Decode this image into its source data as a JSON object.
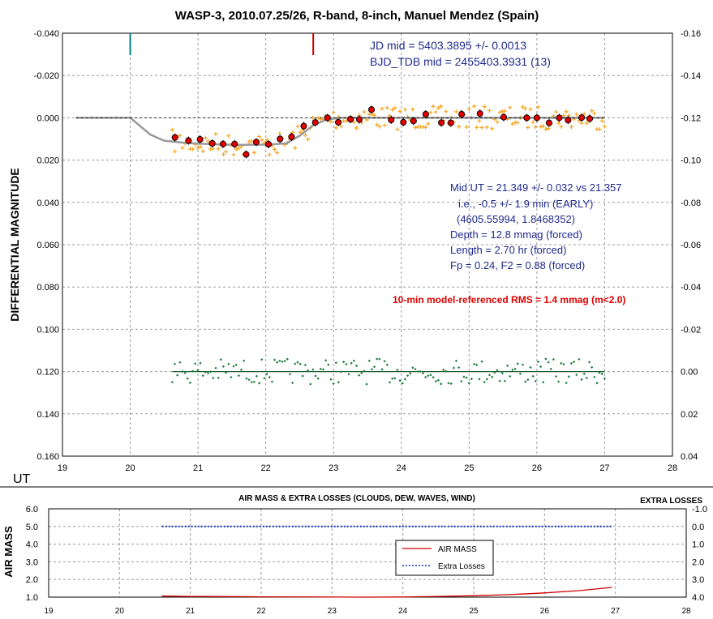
{
  "chart_data": [
    {
      "type": "scatter",
      "title": "WASP-3, 2010.07.25/26, R-band, 8-inch, Manuel Mendez (Spain)",
      "xlabel": "UT",
      "ylabel": "DIFFERENTIAL MAGNITUDE",
      "xlim": [
        19,
        28
      ],
      "ylim": [
        -0.04,
        0.16
      ],
      "y_inverted": true,
      "y2lim": [
        -0.16,
        0.04
      ],
      "grid": true,
      "x_ticks": [
        "19",
        "20",
        "21",
        "22",
        "23",
        "24",
        "25",
        "26",
        "27",
        "28"
      ],
      "y_ticks": [
        "-0.040",
        "-0.020",
        "0.000",
        "0.020",
        "0.040",
        "0.060",
        "0.080",
        "0.100",
        "0.120",
        "0.140",
        "0.160"
      ],
      "y2_ticks": [
        "-0.16",
        "-0.14",
        "-0.12",
        "-0.10",
        "-0.08",
        "-0.06",
        "-0.04",
        "-0.02",
        "0.00",
        "0.02",
        "0.04"
      ],
      "annotations": {
        "jd": [
          "JD mid = 5403.3895 +/- 0.0013",
          "BJD_TDB mid = 2455403.3931 (13)"
        ],
        "fit": [
          "Mid UT = 21.349 +/- 0.032 vs 21.357",
          "i.e., -0.5  +/- 1.9 min (EARLY)",
          "(4605.55994, 1.8468352)",
          "Depth = 12.8 mmag (forced)",
          "Length = 2.70 hr (forced)",
          "Fp = 0.24, F2 = 0.88 (forced)"
        ],
        "rms": "10-min model-referenced RMS = 1.4 mmag (m<2.0)"
      },
      "markers": [
        {
          "x": 20.0,
          "color": "#008080"
        },
        {
          "x": 22.7,
          "color": "#d00000"
        }
      ],
      "model_line": {
        "color": "#999999",
        "points": [
          [
            19.2,
            0.0
          ],
          [
            20.0,
            0.0
          ],
          [
            20.3,
            0.008
          ],
          [
            20.5,
            0.0108
          ],
          [
            20.8,
            0.0118
          ],
          [
            21.0,
            0.0122
          ],
          [
            21.3,
            0.0126
          ],
          [
            21.6,
            0.0128
          ],
          [
            22.0,
            0.0127
          ],
          [
            22.3,
            0.0121
          ],
          [
            22.5,
            0.0085
          ],
          [
            22.7,
            0.0035
          ],
          [
            22.9,
            0.0008
          ],
          [
            23.1,
            0.0
          ],
          [
            27.0,
            0.0
          ]
        ]
      },
      "binned": {
        "color": "#e00000",
        "x": [
          20.66,
          20.86,
          21.03,
          21.21,
          21.37,
          21.54,
          21.71,
          21.86,
          22.04,
          22.21,
          22.38,
          22.56,
          22.73,
          22.91,
          23.07,
          23.25,
          23.38,
          23.56,
          23.85,
          24.03,
          24.18,
          24.36,
          24.59,
          24.73,
          24.89,
          25.16,
          25.51,
          25.85,
          26.0,
          26.18,
          26.33,
          26.46,
          26.66,
          26.78
        ],
        "y": [
          0.0093,
          0.0108,
          0.0102,
          0.0121,
          0.0124,
          0.0124,
          0.0173,
          0.0115,
          0.0125,
          0.01,
          0.009,
          0.0039,
          0.0022,
          0.0,
          0.0021,
          0.0007,
          0.0008,
          -0.0039,
          0.001,
          0.0021,
          0.0015,
          -0.0017,
          0.0023,
          0.0024,
          -0.0017,
          -0.002,
          -0.0003,
          0.0,
          0.0,
          0.0024,
          0.0,
          0.0011,
          -0.0001,
          0.0004
        ]
      },
      "raw_points": {
        "color": "#f5a623",
        "x_range": [
          20.62,
          27.0
        ],
        "count": 170
      },
      "residuals": {
        "color": "#1a7a3a",
        "baseline": 0.12,
        "x_range": [
          20.62,
          27.0
        ],
        "count": 170
      }
    },
    {
      "type": "line",
      "title": "AIR MASS & EXTRA LOSSES (CLOUDS, DEW, WAVES, WIND)",
      "xlabel": "",
      "ylabel": "AIR MASS",
      "y2label": "EXTRA LOSSES",
      "xlim": [
        19,
        28
      ],
      "ylim": [
        1.0,
        6.0
      ],
      "y2lim": [
        -1.0,
        4.0
      ],
      "y2_inverted": true,
      "grid": true,
      "x_ticks": [
        "19",
        "20",
        "21",
        "22",
        "23",
        "24",
        "25",
        "26",
        "27",
        "28"
      ],
      "y_ticks": [
        "1.0",
        "2.0",
        "3.0",
        "4.0",
        "5.0",
        "6.0"
      ],
      "y2_ticks": [
        "-1.0",
        "0.0",
        "1.0",
        "2.0",
        "3.0",
        "4.0"
      ],
      "legend": {
        "placement": "center",
        "entries": [
          "AIR MASS",
          "Extra Losses"
        ]
      },
      "series": [
        {
          "name": "AIR MASS",
          "color": "#d00000",
          "style": "solid",
          "x": [
            20.6,
            21.0,
            21.5,
            22.0,
            23.5,
            24.0,
            24.5,
            25.0,
            25.5,
            26.0,
            26.5,
            26.95
          ],
          "y": [
            1.06,
            1.04,
            1.03,
            1.02,
            1.0,
            1.01,
            1.04,
            1.08,
            1.14,
            1.24,
            1.37,
            1.55
          ]
        },
        {
          "name": "Extra Losses",
          "color": "#1030b0",
          "style": "dotted",
          "x": [
            20.6,
            26.95
          ],
          "y": [
            0.0,
            0.0
          ]
        }
      ]
    }
  ]
}
